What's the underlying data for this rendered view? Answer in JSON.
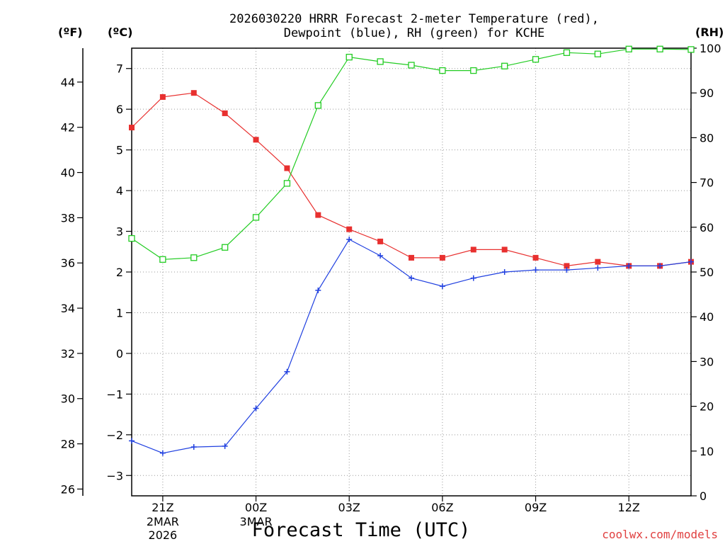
{
  "chart_data": {
    "type": "line",
    "title_line1": "2026030220 HRRR Forecast 2-meter Temperature (red),",
    "title_line2": "Dewpoint (blue), RH (green) for KCHE",
    "xlabel": "Forecast Time (UTC)",
    "units": {
      "left_f": "(ºF)",
      "left_c": "(ºC)",
      "right": "(RH)"
    },
    "credit": "coolwx.com/models",
    "x_hours": [
      20,
      21,
      22,
      23,
      24,
      25,
      26,
      27,
      28,
      29,
      30,
      31,
      32,
      33,
      34,
      35,
      36,
      37,
      38
    ],
    "xlim": [
      20,
      38
    ],
    "x_ticks": [
      {
        "hour": 21,
        "label": "21Z",
        "sub": [
          "2MAR",
          "2026"
        ]
      },
      {
        "hour": 24,
        "label": "00Z",
        "sub": [
          "3MAR"
        ]
      },
      {
        "hour": 27,
        "label": "03Z",
        "sub": []
      },
      {
        "hour": 30,
        "label": "06Z",
        "sub": []
      },
      {
        "hour": 33,
        "label": "09Z",
        "sub": []
      },
      {
        "hour": 36,
        "label": "12Z",
        "sub": []
      }
    ],
    "y_celsius": {
      "lim": [
        -3.5,
        7.5
      ],
      "ticks": [
        -3,
        -2,
        -1,
        0,
        1,
        2,
        3,
        4,
        5,
        6,
        7
      ]
    },
    "y_fahrenheit": {
      "ticks": [
        26,
        28,
        30,
        32,
        34,
        36,
        38,
        40,
        42,
        44
      ]
    },
    "y_rh": {
      "lim": [
        0,
        100
      ],
      "ticks": [
        0,
        10,
        20,
        30,
        40,
        50,
        60,
        70,
        80,
        90,
        100
      ]
    },
    "series": [
      {
        "name": "Temperature",
        "unit": "C",
        "color": "#e8302f",
        "marker": "filled-square",
        "values": [
          5.55,
          6.3,
          6.4,
          5.9,
          5.25,
          4.55,
          3.4,
          3.05,
          2.75,
          2.35,
          2.35,
          2.55,
          2.55,
          2.35,
          2.15,
          2.25,
          2.15,
          2.15,
          2.25
        ]
      },
      {
        "name": "Dewpoint",
        "unit": "C",
        "color": "#2040e0",
        "marker": "plus",
        "values": [
          -2.15,
          -2.45,
          -2.3,
          -2.28,
          -1.35,
          -0.45,
          1.55,
          2.8,
          2.4,
          1.85,
          1.65,
          1.85,
          2.0,
          2.05,
          2.05,
          2.1,
          2.15,
          2.15,
          2.25
        ]
      },
      {
        "name": "RH",
        "unit": "%",
        "color": "#22cc22",
        "marker": "open-square",
        "values": [
          57.5,
          52.8,
          53.2,
          55.5,
          62.2,
          69.8,
          87.2,
          98.0,
          97.0,
          96.2,
          95.0,
          95.0,
          96.0,
          97.5,
          99.0,
          98.7,
          99.8,
          99.8,
          99.7
        ]
      }
    ]
  }
}
